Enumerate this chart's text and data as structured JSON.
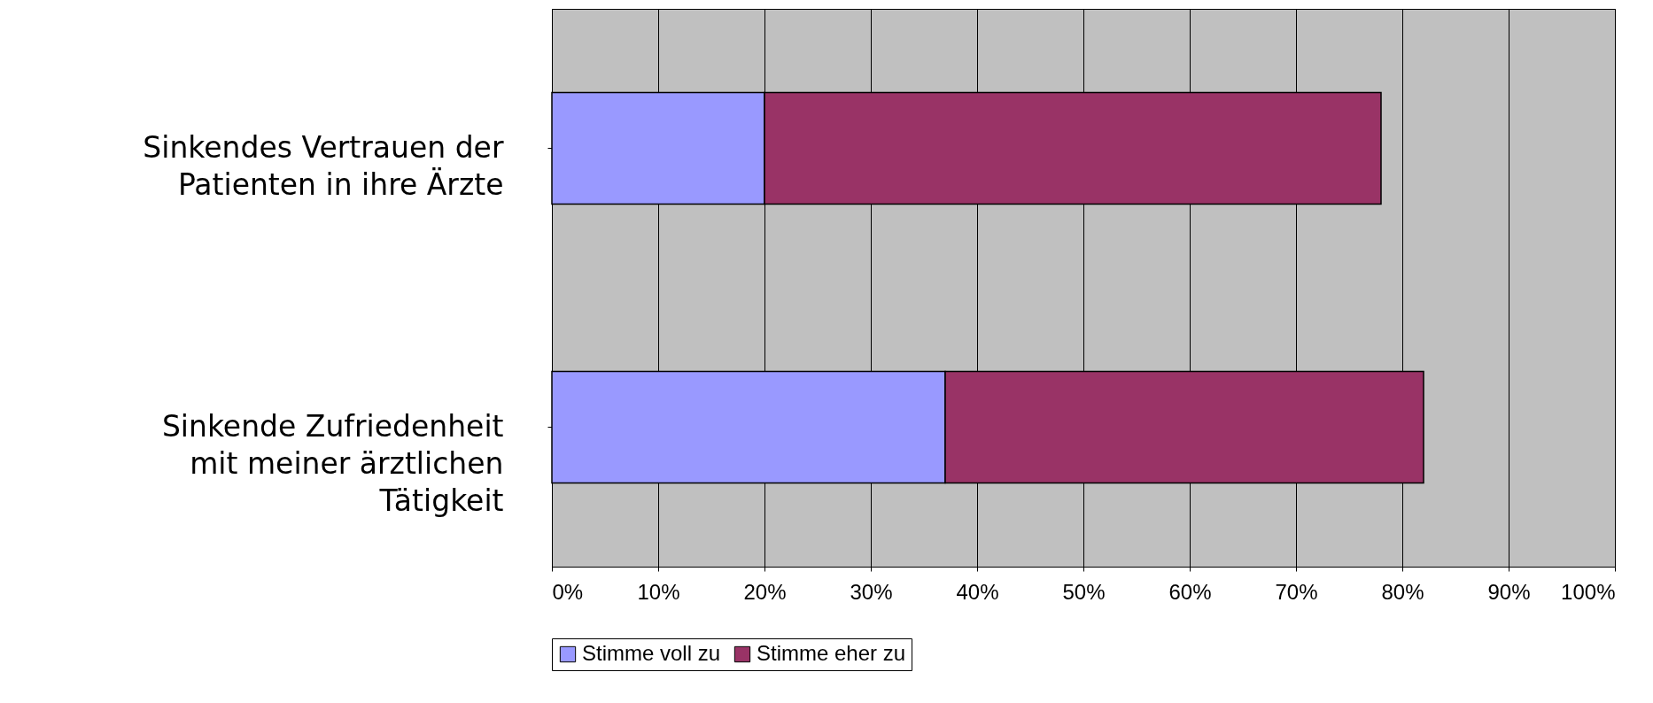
{
  "chart_data": {
    "type": "bar",
    "orientation": "horizontal",
    "stacked": true,
    "categories": [
      "Sinkendes Vertrauen der\nPatienten in ihre Ärzte",
      "Sinkende Zufriedenheit\nmit meiner ärztlichen\nTätigkeit"
    ],
    "series": [
      {
        "name": "Stimme voll zu",
        "color": "#9999ff",
        "values": [
          20,
          37
        ]
      },
      {
        "name": "Stimme eher zu",
        "color": "#993366",
        "values": [
          58,
          45
        ]
      }
    ],
    "xlim": [
      0,
      100
    ],
    "xticks": [
      {
        "value": 0,
        "label": "0%"
      },
      {
        "value": 10,
        "label": "10%"
      },
      {
        "value": 20,
        "label": "20%"
      },
      {
        "value": 30,
        "label": "30%"
      },
      {
        "value": 40,
        "label": "40%"
      },
      {
        "value": 50,
        "label": "50%"
      },
      {
        "value": 60,
        "label": "60%"
      },
      {
        "value": 70,
        "label": "70%"
      },
      {
        "value": 80,
        "label": "80%"
      },
      {
        "value": 90,
        "label": "90%"
      },
      {
        "value": 100,
        "label": "100%"
      }
    ],
    "grid": "x",
    "legend": "bottom"
  }
}
